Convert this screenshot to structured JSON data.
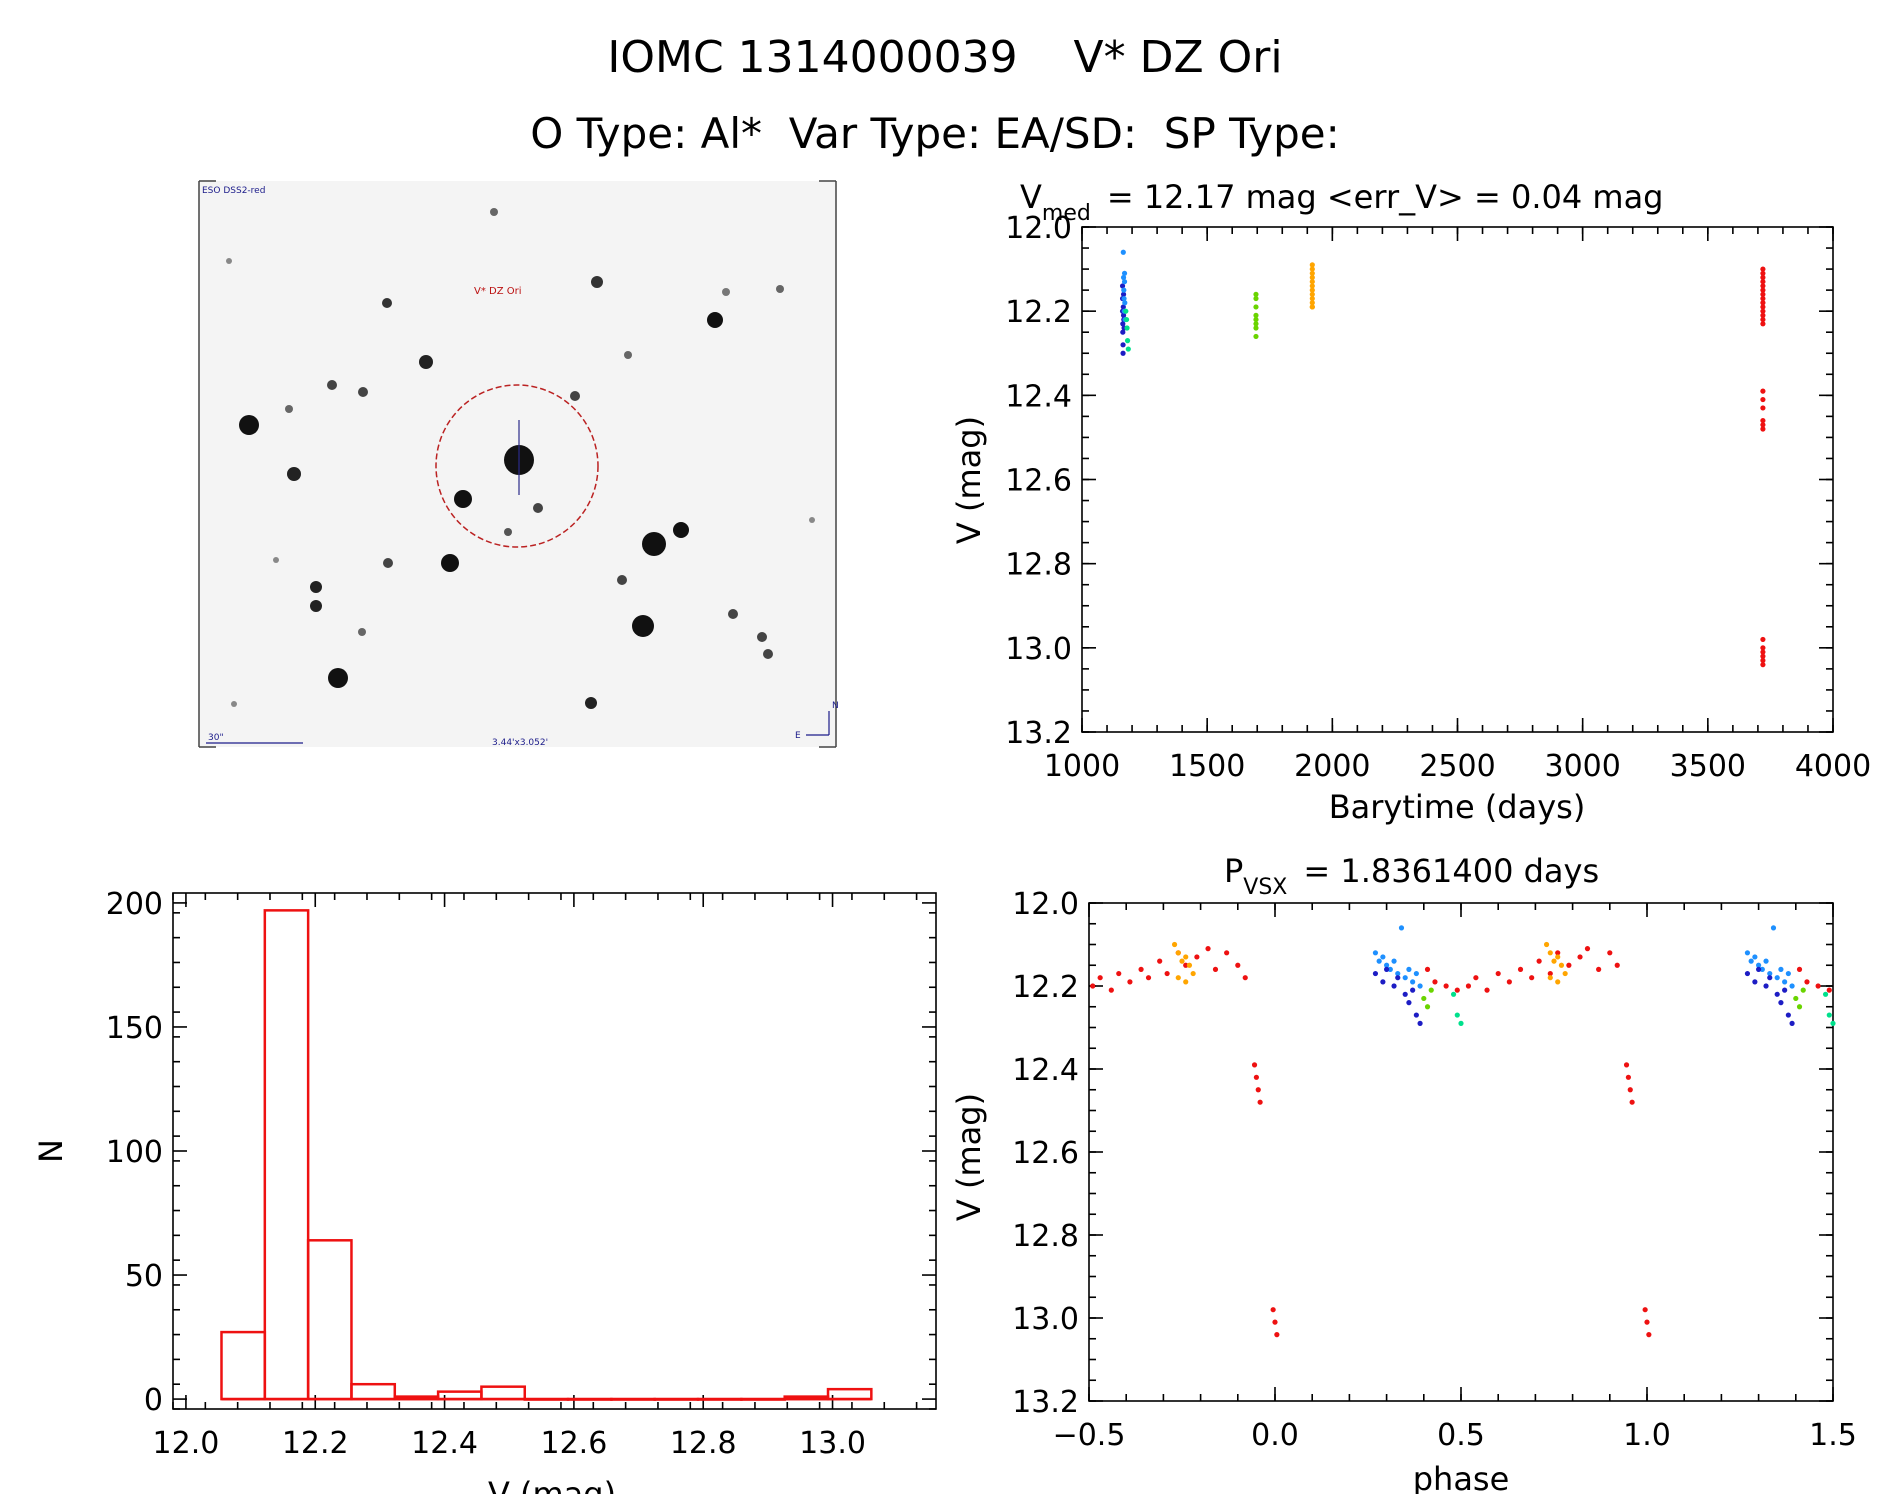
{
  "header": {
    "title": "IOMC 1314000039    V* DZ Ori",
    "subtitle": "O Type: Al*  Var Type: EA/SD:  SP Type:"
  },
  "finder_image": {
    "survey_label": "ESO DSS2-red",
    "target_label": "V* DZ Ori",
    "scale_label": "30\"",
    "size_label": "3.44'x3.052'",
    "compass_n": "N",
    "compass_e": "E"
  },
  "chart_data": [
    {
      "type": "scatter",
      "id": "lightcurve",
      "title_main": "V",
      "title_sub": "med",
      "title_rest": "= 12.17 mag <err_V> = 0.04 mag",
      "xlabel": "Barytime (days)",
      "ylabel": "V (mag)",
      "xlim": [
        1000,
        4000
      ],
      "ylim": [
        13.2,
        12.0
      ],
      "xticks": [
        1000,
        1500,
        2000,
        2500,
        3000,
        3500,
        4000
      ],
      "xtick_labels": [
        "1000",
        "1500",
        "2000",
        "2500",
        "3000",
        "3500",
        "4000"
      ],
      "yticks": [
        12.0,
        12.2,
        12.4,
        12.6,
        12.8,
        13.0,
        13.2
      ],
      "ytick_labels": [
        "12.0",
        "12.2",
        "12.4",
        "12.6",
        "12.8",
        "13.0",
        "13.2"
      ],
      "series": [
        {
          "name": "s1",
          "color": "#1d1dc4",
          "x": [
            1162,
            1162,
            1162,
            1163,
            1163,
            1164,
            1164,
            1165,
            1166,
            1166,
            1167,
            1168
          ],
          "y": [
            12.14,
            12.17,
            12.2,
            12.23,
            12.25,
            12.28,
            12.3,
            12.19,
            12.21,
            12.16,
            12.22,
            12.24
          ]
        },
        {
          "name": "s2",
          "color": "#1e90ff",
          "x": [
            1165,
            1166,
            1167,
            1168,
            1169,
            1170,
            1170,
            1171,
            1172
          ],
          "y": [
            12.06,
            12.12,
            12.15,
            12.17,
            12.2,
            12.11,
            12.13,
            12.18,
            12.22
          ]
        },
        {
          "name": "s3",
          "color": "#00e08c",
          "x": [
            1175,
            1178,
            1180,
            1182,
            1185
          ],
          "y": [
            12.2,
            12.22,
            12.24,
            12.27,
            12.29
          ]
        },
        {
          "name": "s4",
          "color": "#6ad400",
          "x": [
            1695,
            1695,
            1695,
            1695,
            1695,
            1695,
            1695,
            1695
          ],
          "y": [
            12.16,
            12.17,
            12.19,
            12.21,
            12.22,
            12.23,
            12.24,
            12.26
          ]
        },
        {
          "name": "s5",
          "color": "#ffa500",
          "x": [
            1920,
            1920,
            1920,
            1920,
            1920,
            1920,
            1920,
            1920,
            1920,
            1920,
            1920,
            1920
          ],
          "y": [
            12.09,
            12.1,
            12.11,
            12.12,
            12.13,
            12.14,
            12.15,
            12.16,
            12.17,
            12.18,
            12.19,
            12.19
          ]
        },
        {
          "name": "s6",
          "color": "#ee1111",
          "x": [
            3720,
            3720,
            3720,
            3720,
            3720,
            3720,
            3720,
            3720,
            3720,
            3720,
            3720,
            3720,
            3720,
            3720,
            3720,
            3720,
            3720,
            3720,
            3720,
            3720,
            3720,
            3720,
            3720,
            3720,
            3720,
            3720
          ],
          "y": [
            12.1,
            12.11,
            12.12,
            12.13,
            12.14,
            12.15,
            12.16,
            12.17,
            12.18,
            12.19,
            12.2,
            12.21,
            12.22,
            12.23,
            12.39,
            12.41,
            12.43,
            12.46,
            12.47,
            12.48,
            12.98,
            13.0,
            13.01,
            13.02,
            13.03,
            13.04
          ]
        }
      ]
    },
    {
      "type": "bar",
      "id": "histogram",
      "xlabel": "V (mag)",
      "ylabel": "N",
      "xlim": [
        11.98,
        13.16
      ],
      "ylim": [
        -4,
        204
      ],
      "xticks": [
        12.0,
        12.2,
        12.4,
        12.6,
        12.8,
        13.0
      ],
      "xtick_labels": [
        "12.0",
        "12.2",
        "12.4",
        "12.6",
        "12.8",
        "13.0"
      ],
      "yticks": [
        0,
        50,
        100,
        150,
        200
      ],
      "ytick_labels": [
        "0",
        "50",
        "100",
        "150",
        "200"
      ],
      "bin_edges": [
        12.055,
        12.122,
        12.189,
        12.256,
        12.323,
        12.39,
        12.457,
        12.524,
        12.591,
        12.658,
        12.725,
        12.792,
        12.859,
        12.926,
        12.993,
        13.06
      ],
      "values": [
        27,
        197,
        64,
        6,
        1,
        3,
        5,
        0,
        0,
        0,
        0,
        0,
        0,
        1,
        4
      ],
      "color": "#ee1111"
    },
    {
      "type": "scatter",
      "id": "phased",
      "title_main": "P",
      "title_sub": "VSX",
      "title_rest": "= 1.8361400 days",
      "xlabel": "phase",
      "ylabel": "V (mag)",
      "xlim": [
        -0.5,
        1.5
      ],
      "ylim": [
        13.2,
        12.0
      ],
      "xticks": [
        -0.5,
        0.0,
        0.5,
        1.0,
        1.5
      ],
      "xtick_labels": [
        "−0.5",
        "0.0",
        "0.5",
        "1.0",
        "1.5"
      ],
      "yticks": [
        12.0,
        12.2,
        12.4,
        12.6,
        12.8,
        13.0,
        13.2
      ],
      "ytick_labels": [
        "12.0",
        "12.2",
        "12.4",
        "12.6",
        "12.8",
        "13.0",
        "13.2"
      ],
      "series": [
        {
          "name": "red",
          "color": "#ee1111",
          "x": [
            -0.49,
            -0.47,
            -0.44,
            -0.42,
            -0.39,
            -0.36,
            -0.34,
            -0.31,
            -0.29,
            -0.26,
            -0.24,
            -0.21,
            -0.18,
            -0.16,
            -0.13,
            -0.1,
            -0.08,
            -0.055,
            -0.05,
            -0.045,
            -0.04,
            -0.005,
            0.0,
            0.005,
            0.41,
            0.43,
            0.46,
            0.49,
            0.52,
            0.54,
            0.57,
            0.6,
            0.63,
            0.66,
            0.69,
            0.71,
            0.74,
            0.76,
            0.79,
            0.82,
            0.84,
            0.87,
            0.9,
            0.92,
            0.945,
            0.95,
            0.955,
            0.96,
            0.995,
            1.0,
            1.005,
            1.41,
            1.43,
            1.46,
            1.49
          ],
          "y": [
            12.2,
            12.18,
            12.21,
            12.17,
            12.19,
            12.16,
            12.18,
            12.14,
            12.17,
            12.12,
            12.15,
            12.13,
            12.11,
            12.16,
            12.12,
            12.15,
            12.18,
            12.39,
            12.42,
            12.45,
            12.48,
            12.98,
            13.01,
            13.04,
            12.16,
            12.19,
            12.2,
            12.21,
            12.2,
            12.18,
            12.21,
            12.17,
            12.19,
            12.16,
            12.18,
            12.14,
            12.17,
            12.12,
            12.15,
            12.13,
            12.11,
            12.16,
            12.12,
            12.15,
            12.39,
            12.42,
            12.45,
            12.48,
            12.98,
            13.01,
            13.04,
            12.16,
            12.19,
            12.2,
            12.21
          ]
        },
        {
          "name": "blue",
          "color": "#1e90ff",
          "x": [
            0.27,
            0.28,
            0.29,
            0.3,
            0.31,
            0.32,
            0.33,
            0.34,
            0.35,
            0.36,
            0.37,
            0.38,
            0.39,
            1.27,
            1.28,
            1.29,
            1.3,
            1.31,
            1.32,
            1.33,
            1.34,
            1.35,
            1.36,
            1.37,
            1.38,
            1.39
          ],
          "y": [
            12.12,
            12.14,
            12.13,
            12.15,
            12.16,
            12.14,
            12.17,
            12.06,
            12.18,
            12.16,
            12.19,
            12.17,
            12.2,
            12.12,
            12.14,
            12.13,
            12.15,
            12.16,
            12.14,
            12.17,
            12.06,
            12.18,
            12.16,
            12.19,
            12.17,
            12.2
          ]
        },
        {
          "name": "navy",
          "color": "#1d1dc4",
          "x": [
            0.27,
            0.29,
            0.3,
            0.32,
            0.33,
            0.35,
            0.36,
            0.37,
            0.38,
            0.39,
            1.27,
            1.29,
            1.3,
            1.32,
            1.33,
            1.35,
            1.36,
            1.37,
            1.38,
            1.39
          ],
          "y": [
            12.17,
            12.19,
            12.16,
            12.2,
            12.18,
            12.22,
            12.24,
            12.21,
            12.27,
            12.29,
            12.17,
            12.19,
            12.16,
            12.2,
            12.18,
            12.22,
            12.24,
            12.21,
            12.27,
            12.29
          ]
        },
        {
          "name": "orange",
          "color": "#ffa500",
          "x": [
            -0.27,
            -0.26,
            -0.25,
            -0.24,
            -0.23,
            -0.22,
            -0.26,
            -0.24,
            0.73,
            0.74,
            0.75,
            0.76,
            0.77,
            0.78,
            0.74,
            0.76
          ],
          "y": [
            12.1,
            12.12,
            12.14,
            12.13,
            12.15,
            12.17,
            12.18,
            12.19,
            12.1,
            12.12,
            12.14,
            12.13,
            12.15,
            12.17,
            12.18,
            12.19
          ]
        },
        {
          "name": "green",
          "color": "#6ad400",
          "x": [
            0.4,
            0.41,
            0.42,
            1.4,
            1.41,
            1.42
          ],
          "y": [
            12.23,
            12.25,
            12.21,
            12.23,
            12.25,
            12.21
          ]
        },
        {
          "name": "teal",
          "color": "#00e08c",
          "x": [
            0.48,
            0.49,
            0.5,
            1.48,
            1.49,
            1.5
          ],
          "y": [
            12.22,
            12.27,
            12.29,
            12.22,
            12.27,
            12.29
          ]
        }
      ]
    }
  ]
}
